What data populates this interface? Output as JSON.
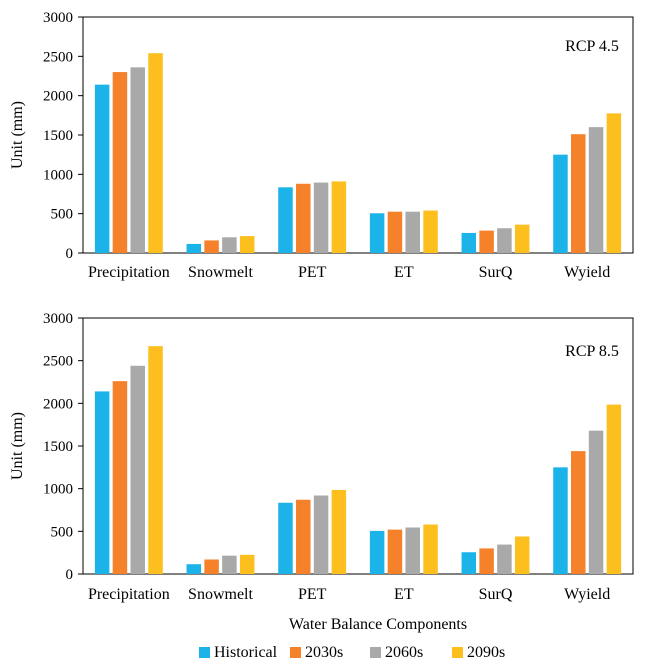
{
  "colors": {
    "Historical": "#1cb4e8",
    "2030s": "#f5822a",
    "2060s": "#a9a9a9",
    "2090s": "#fcbf1e"
  },
  "xlabel": "Water Balance Components",
  "chart_data": [
    {
      "type": "bar",
      "annotation": "RCP 4.5",
      "ylabel": "Unit (mm)",
      "ylim": [
        0,
        3000
      ],
      "yticks": [
        0,
        500,
        1000,
        1500,
        2000,
        2500,
        3000
      ],
      "categories": [
        "Precipitation",
        "Snowmelt",
        "PET",
        "ET",
        "SurQ",
        "Wyield"
      ],
      "series": [
        {
          "name": "Historical",
          "values": [
            2140,
            115,
            835,
            505,
            255,
            1250
          ]
        },
        {
          "name": "2030s",
          "values": [
            2300,
            160,
            880,
            525,
            285,
            1510
          ]
        },
        {
          "name": "2060s",
          "values": [
            2360,
            200,
            895,
            525,
            315,
            1600
          ]
        },
        {
          "name": "2090s",
          "values": [
            2540,
            215,
            910,
            540,
            360,
            1775
          ]
        }
      ]
    },
    {
      "type": "bar",
      "annotation": "RCP 8.5",
      "ylabel": "Unit (mm)",
      "ylim": [
        0,
        3000
      ],
      "yticks": [
        0,
        500,
        1000,
        1500,
        2000,
        2500,
        3000
      ],
      "categories": [
        "Precipitation",
        "Snowmelt",
        "PET",
        "ET",
        "SurQ",
        "Wyield"
      ],
      "series": [
        {
          "name": "Historical",
          "values": [
            2140,
            115,
            835,
            505,
            255,
            1250
          ]
        },
        {
          "name": "2030s",
          "values": [
            2260,
            170,
            870,
            520,
            300,
            1440
          ]
        },
        {
          "name": "2060s",
          "values": [
            2440,
            215,
            920,
            545,
            345,
            1680
          ]
        },
        {
          "name": "2090s",
          "values": [
            2670,
            225,
            985,
            580,
            440,
            1985
          ]
        }
      ]
    }
  ],
  "legend": [
    "Historical",
    "2030s",
    "2060s",
    "2090s"
  ]
}
